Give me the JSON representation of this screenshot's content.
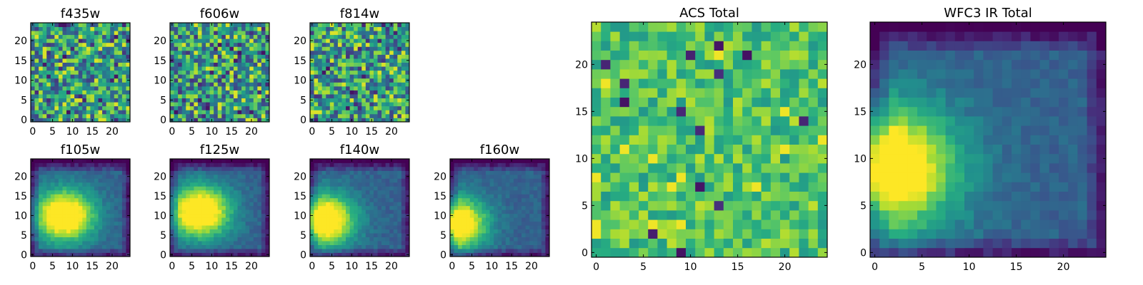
{
  "chart_data": [
    {
      "type": "heatmap",
      "title": "f435w",
      "grid_size": 25,
      "x_ticks": [
        0,
        5,
        10,
        15,
        20
      ],
      "y_ticks": [
        0,
        5,
        10,
        15,
        20
      ],
      "xlim": [
        0,
        24
      ],
      "ylim": [
        0,
        24
      ],
      "colormap": "viridis",
      "pattern": "noise",
      "seed": 11
    },
    {
      "type": "heatmap",
      "title": "f606w",
      "grid_size": 25,
      "x_ticks": [
        0,
        5,
        10,
        15,
        20
      ],
      "y_ticks": [
        0,
        5,
        10,
        15,
        20
      ],
      "xlim": [
        0,
        24
      ],
      "ylim": [
        0,
        24
      ],
      "colormap": "viridis",
      "pattern": "noise",
      "seed": 23
    },
    {
      "type": "heatmap",
      "title": "f814w",
      "grid_size": 25,
      "x_ticks": [
        0,
        5,
        10,
        15,
        20
      ],
      "y_ticks": [
        0,
        5,
        10,
        15,
        20
      ],
      "xlim": [
        0,
        24
      ],
      "ylim": [
        0,
        24
      ],
      "colormap": "viridis",
      "pattern": "noise",
      "seed": 37
    },
    {
      "type": "heatmap",
      "title": "f105w",
      "grid_size": 25,
      "x_ticks": [
        0,
        5,
        10,
        15,
        20
      ],
      "y_ticks": [
        0,
        5,
        10,
        15,
        20
      ],
      "xlim": [
        0,
        24
      ],
      "ylim": [
        0,
        24
      ],
      "colormap": "viridis",
      "pattern": "smooth",
      "peak": [
        8,
        10
      ],
      "seed": 41
    },
    {
      "type": "heatmap",
      "title": "f125w",
      "grid_size": 25,
      "x_ticks": [
        0,
        5,
        10,
        15,
        20
      ],
      "y_ticks": [
        0,
        5,
        10,
        15,
        20
      ],
      "xlim": [
        0,
        24
      ],
      "ylim": [
        0,
        24
      ],
      "colormap": "viridis",
      "pattern": "smooth",
      "peak": [
        7,
        11
      ],
      "seed": 53
    },
    {
      "type": "heatmap",
      "title": "f140w",
      "grid_size": 25,
      "x_ticks": [
        0,
        5,
        10,
        15,
        20
      ],
      "y_ticks": [
        0,
        5,
        10,
        15,
        20
      ],
      "xlim": [
        0,
        24
      ],
      "ylim": [
        0,
        24
      ],
      "colormap": "viridis",
      "pattern": "smooth",
      "peak": [
        3,
        9
      ],
      "seed": 67
    },
    {
      "type": "heatmap",
      "title": "f160w",
      "grid_size": 25,
      "x_ticks": [
        0,
        5,
        10,
        15,
        20
      ],
      "y_ticks": [
        0,
        5,
        10,
        15,
        20
      ],
      "xlim": [
        0,
        24
      ],
      "ylim": [
        0,
        24
      ],
      "colormap": "viridis",
      "pattern": "smooth",
      "peak": [
        1,
        8
      ],
      "seed": 79
    },
    {
      "type": "heatmap",
      "title": "ACS Total",
      "grid_size": 25,
      "x_ticks": [
        0,
        5,
        10,
        15,
        20
      ],
      "y_ticks": [
        0,
        5,
        10,
        15,
        20
      ],
      "xlim": [
        0,
        24
      ],
      "ylim": [
        0,
        24
      ],
      "colormap": "viridis",
      "pattern": "noise-bright",
      "seed": 97
    },
    {
      "type": "heatmap",
      "title": "WFC3 IR Total",
      "grid_size": 25,
      "x_ticks": [
        0,
        5,
        10,
        15,
        20
      ],
      "y_ticks": [
        0,
        5,
        10,
        15,
        20
      ],
      "xlim": [
        0,
        24
      ],
      "ylim": [
        0,
        24
      ],
      "colormap": "viridis",
      "pattern": "smooth",
      "peak": [
        1,
        9
      ],
      "seed": 113
    }
  ],
  "colors": {
    "axis": "#000000",
    "background": "#ffffff"
  }
}
